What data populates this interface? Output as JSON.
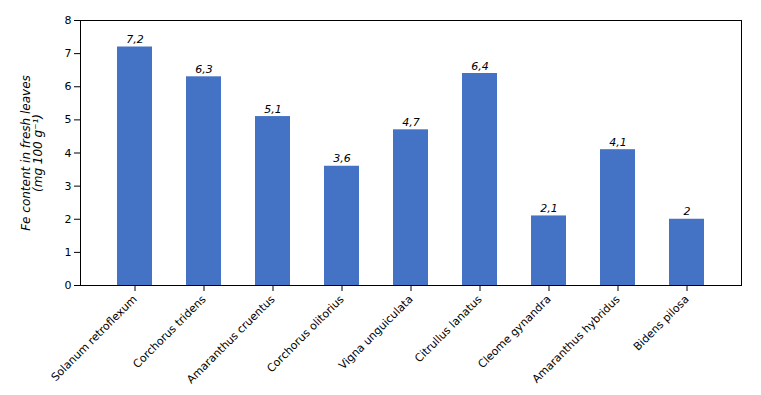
{
  "chart_data": {
    "type": "bar",
    "ylabel": "Fe content in fresh leaves\n(mg 100 g⁻¹)",
    "categories": [
      "Solanum retroflexum",
      "Corchorus tridens",
      "Amaranthus cruentus",
      "Corchorus olitorius",
      "Vigna unguiculata",
      "Citrullus lanatus",
      "Cleome gynandra",
      "Amaranthus hybridus",
      "Bidens pilosa"
    ],
    "values": [
      7.2,
      6.3,
      5.1,
      3.6,
      4.7,
      6.4,
      2.1,
      4.1,
      2.0
    ],
    "value_labels": [
      "7,2",
      "6,3",
      "5,1",
      "3,6",
      "4,7",
      "6,4",
      "2,1",
      "4,1",
      "2"
    ],
    "data_labels": true,
    "color": "#4472C4",
    "ylim": [
      0,
      8
    ],
    "yticks": [
      0,
      1,
      2,
      3,
      4,
      5,
      6,
      7,
      8
    ],
    "grid": false
  }
}
